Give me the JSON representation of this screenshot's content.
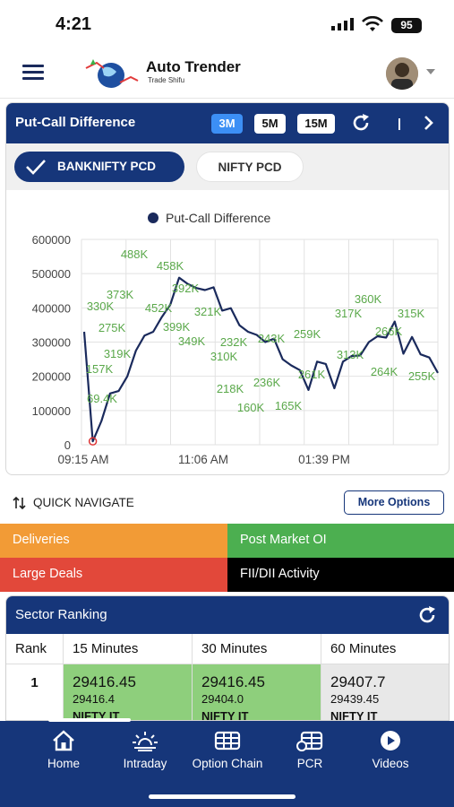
{
  "status": {
    "time": "4:21",
    "battery": "95"
  },
  "header": {
    "brand": "Auto Trender",
    "tagline": "Trade Shifu"
  },
  "pcd": {
    "title": "Put-Call Difference",
    "timeframes": [
      "3M",
      "5M",
      "15M"
    ],
    "active_timeframe": "3M",
    "tabs": {
      "active": "BANKNIFTY PCD",
      "inactive": "NIFTY PCD"
    }
  },
  "chart_data": {
    "type": "line",
    "legend": "Put-Call Difference",
    "legend_position": "top",
    "grid": true,
    "x_ticks": [
      "09:15 AM",
      "11:06 AM",
      "01:39 PM"
    ],
    "y_ticks": [
      "0",
      "100000",
      "200000",
      "300000",
      "400000",
      "500000",
      "600000"
    ],
    "ylim": [
      0,
      600000
    ],
    "series": [
      {
        "name": "Put-Call Difference",
        "values": [
          330000,
          10000,
          69400,
          150000,
          157000,
          200000,
          275000,
          319000,
          330000,
          373000,
          410000,
          488000,
          470000,
          458000,
          452000,
          460000,
          392000,
          399000,
          349000,
          330000,
          321000,
          300000,
          310000,
          250000,
          232000,
          218000,
          160000,
          243000,
          236000,
          165000,
          243000,
          259000,
          261000,
          300000,
          317000,
          313000,
          360000,
          266000,
          315000,
          264000,
          255000,
          210000
        ]
      }
    ],
    "data_labels": [
      "488K",
      "458K",
      "373K",
      "330K",
      "392K",
      "452K",
      "275K",
      "399K",
      "321K",
      "349K",
      "319K",
      "232K",
      "310K",
      "157K",
      "69.4K",
      "218K",
      "236K",
      "160K",
      "165K",
      "243K",
      "259K",
      "261K",
      "317K",
      "360K",
      "313K",
      "266K",
      "315K",
      "264K",
      "255K"
    ]
  },
  "quick_nav": {
    "label": "QUICK NAVIGATE",
    "more": "More Options"
  },
  "tiles": {
    "deliveries": "Deliveries",
    "post_market_oi": "Post Market OI",
    "large_deals": "Large Deals",
    "fii_dii": "FII/DII Activity"
  },
  "sector": {
    "title": "Sector Ranking",
    "columns": [
      "Rank",
      "15 Minutes",
      "30 Minutes",
      "60 Minutes"
    ],
    "row": {
      "rank": "1",
      "m15": {
        "v1": "29416.45",
        "v2": "29416.4",
        "name": "NIFTY IT"
      },
      "m30": {
        "v1": "29416.45",
        "v2": "29404.0",
        "name": "NIFTY IT"
      },
      "m60": {
        "v1": "29407.7",
        "v2": "29439.45",
        "name": "NIFTY IT"
      }
    }
  },
  "nav": {
    "home": "Home",
    "intraday": "Intraday",
    "option_chain": "Option Chain",
    "pcr": "PCR",
    "videos": "Videos"
  },
  "colors": {
    "primary": "#16367a",
    "line": "#1a2a5c",
    "label": "#5aa84a"
  }
}
